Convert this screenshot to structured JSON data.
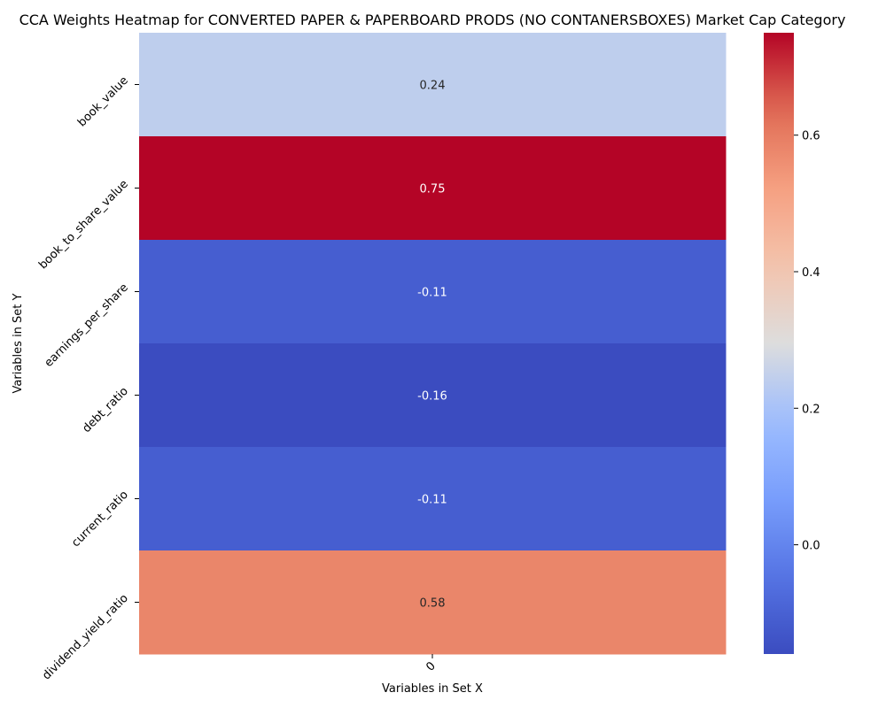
{
  "chart_data": {
    "type": "heatmap",
    "title": "CCA Weights Heatmap for CONVERTED PAPER & PAPERBOARD PRODS (NO CONTANERSBOXES) Market Cap Category",
    "xlabel": "Variables in Set X",
    "ylabel": "Variables in Set Y",
    "x_categories": [
      "0"
    ],
    "y_categories": [
      "book_value",
      "book_to_share_value",
      "earnings_per_share",
      "debt_ratio",
      "current_ratio",
      "dividend_yield_ratio"
    ],
    "values": [
      [
        0.24
      ],
      [
        0.75
      ],
      [
        -0.11
      ],
      [
        -0.16
      ],
      [
        -0.11
      ],
      [
        0.58
      ]
    ],
    "annotations": [
      "0.24",
      "0.75",
      "-0.11",
      "-0.16",
      "-0.11",
      "0.58"
    ],
    "colormap": "coolwarm",
    "vmin": -0.16,
    "vmax": 0.75,
    "colorbar_ticks": [
      0.0,
      0.2,
      0.4,
      0.6
    ],
    "colorbar_tick_labels": [
      "0.0",
      "0.2",
      "0.4",
      "0.6"
    ]
  }
}
